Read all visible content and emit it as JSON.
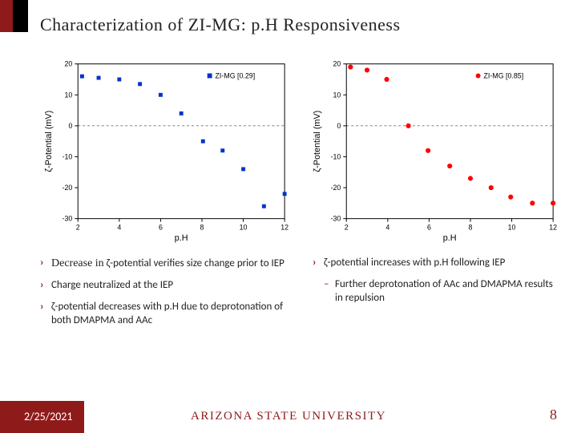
{
  "title": "Characterization of ZI-MG: p.H Responsiveness",
  "footer": {
    "date": "2/25/2021",
    "affiliation": "ARIZONA STATE UNIVERSITY",
    "page": "8"
  },
  "bullets_left": [
    {
      "first": "Decrease in",
      "rest": " ζ-potential verifies size change prior to IEP"
    },
    {
      "first": "",
      "rest": "Charge neutralized at the IEP"
    },
    {
      "first": "",
      "rest": "ζ-potential decreases with p.H due to deprotonation of both DMAPMA and AAc"
    }
  ],
  "bullets_right": [
    {
      "first": "",
      "rest": "ζ-potential increases with p.H following IEP",
      "sub": "Further deprotonation of AAc and DMAPMA results in repulsion"
    }
  ],
  "chart_left": {
    "type": "scatter",
    "legend": "ZI-MG [0.29]",
    "marker_color": "#0033cc",
    "marker_shape": "square",
    "marker_size": 5,
    "xlabel": "p.H",
    "ylabel": "ζ-Potential (mV)",
    "xlim": [
      2,
      12
    ],
    "xtick_step": 2,
    "ylim": [
      -30,
      20
    ],
    "ytick_step": 10,
    "background": "#ffffff",
    "axis_color": "#000000",
    "tick_fontsize": 9,
    "label_fontsize": 11,
    "zero_line": true,
    "x": [
      2.2,
      3.0,
      4.0,
      5.0,
      6.0,
      7.0,
      8.05,
      9.0,
      10.0,
      11.0,
      12.0
    ],
    "y": [
      16,
      15.5,
      15,
      13.5,
      10,
      4,
      -5,
      -8,
      -14,
      -26,
      -22
    ]
  },
  "chart_right": {
    "type": "scatter",
    "legend": "ZI-MG [0.85]",
    "marker_color": "#ff0000",
    "marker_shape": "circle",
    "marker_size": 5,
    "xlabel": "p.H",
    "ylabel": "ζ-Potential (mV)",
    "xlim": [
      2,
      12
    ],
    "xtick_step": 2,
    "ylim": [
      -30,
      20
    ],
    "ytick_step": 10,
    "background": "#ffffff",
    "axis_color": "#000000",
    "tick_fontsize": 9,
    "label_fontsize": 11,
    "zero_line": true,
    "x": [
      2.2,
      3.0,
      3.95,
      5.0,
      5.95,
      7.0,
      8.0,
      9.0,
      9.95,
      11.0,
      12.0
    ],
    "y": [
      19,
      18,
      15,
      0,
      -8,
      -13,
      -17,
      -20,
      -23,
      -25,
      -25
    ]
  }
}
